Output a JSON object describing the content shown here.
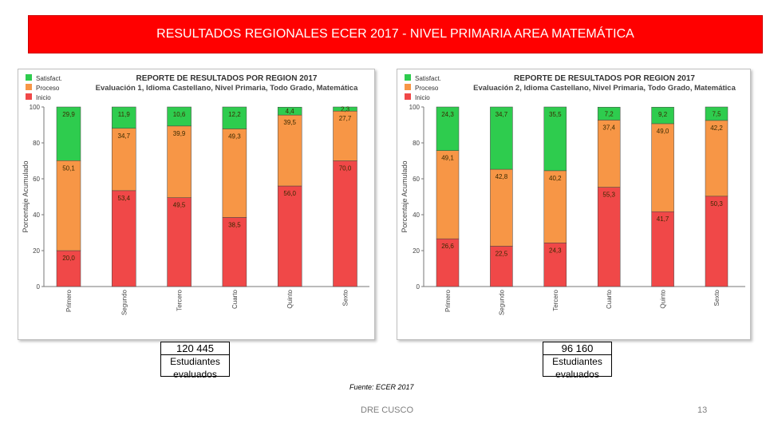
{
  "slide": {
    "title": "RESULTADOS REGIONALES ECER 2017 - NIVEL PRIMARIA AREA MATEMÁTICA",
    "source": "Fuente: ECER 2017",
    "footer_center": "DRE CUSCO",
    "page_number": "13",
    "stats": [
      {
        "number": "120 445",
        "label": "Estudiantes evaluados"
      },
      {
        "number": "96 160",
        "label": "Estudiantes evaluados"
      }
    ]
  },
  "colors": {
    "satisfactorio": "#2ecc4e",
    "proceso": "#f79646",
    "inicio": "#f04848",
    "title_bar": "#ff0000"
  },
  "chart_data": [
    {
      "type": "bar",
      "stacked": true,
      "title": "REPORTE DE RESULTADOS POR REGION 2017",
      "subtitle": "Evaluación 1, Idioma Castellano, Nivel Primaria, Todo Grado, Matemática",
      "ylabel": "Porcentaje Acumulado",
      "ylim": [
        0,
        100
      ],
      "yticks": [
        "0",
        "20",
        "40",
        "60",
        "80",
        "100"
      ],
      "legend": "top-left",
      "categories": [
        "Primero",
        "Segundo",
        "Tercero",
        "Cuarto",
        "Quinto",
        "Sexto"
      ],
      "series": [
        {
          "name": "Inicio",
          "values": [
            20.0,
            53.4,
            49.5,
            38.5,
            56.0,
            70.0
          ],
          "labels": [
            "20,0",
            "53,4",
            "49,5",
            "38,5",
            "56,0",
            "70,0"
          ]
        },
        {
          "name": "Proceso",
          "values": [
            50.1,
            34.7,
            39.9,
            49.3,
            39.5,
            27.7
          ],
          "labels": [
            "50,1",
            "34,7",
            "39,9",
            "49,3",
            "39,5",
            "27,7"
          ]
        },
        {
          "name": "Satisfact.",
          "values": [
            29.9,
            11.9,
            10.6,
            12.2,
            4.4,
            2.3
          ],
          "labels": [
            "29,9",
            "11,9",
            "10,6",
            "12,2",
            "4,4",
            "2,3"
          ]
        }
      ]
    },
    {
      "type": "bar",
      "stacked": true,
      "title": "REPORTE DE RESULTADOS POR REGION 2017",
      "subtitle": "Evaluación 2, Idioma Castellano, Nivel Primaria, Todo Grado, Matemática",
      "ylabel": "Porcentaje Acumulado",
      "ylim": [
        0,
        100
      ],
      "yticks": [
        "0",
        "20",
        "40",
        "60",
        "80",
        "100"
      ],
      "legend": "top-left",
      "categories": [
        "Primero",
        "Segundo",
        "Tercero",
        "Cuarto",
        "Quinto",
        "Sexto"
      ],
      "series": [
        {
          "name": "Inicio",
          "values": [
            26.6,
            22.5,
            24.3,
            55.3,
            41.7,
            50.3
          ],
          "labels": [
            "26,6",
            "22,5",
            "24,3",
            "55,3",
            "41,7",
            "50,3"
          ]
        },
        {
          "name": "Proceso",
          "values": [
            49.1,
            42.8,
            40.2,
            37.4,
            49.0,
            42.2
          ],
          "labels": [
            "49,1",
            "42,8",
            "40,2",
            "37,4",
            "49,0",
            "42,2"
          ]
        },
        {
          "name": "Satisfact.",
          "values": [
            24.3,
            34.7,
            35.5,
            7.2,
            9.2,
            7.5
          ],
          "labels": [
            "24,3",
            "34,7",
            "35,5",
            "7,2",
            "9,2",
            "7,5"
          ]
        }
      ]
    }
  ]
}
